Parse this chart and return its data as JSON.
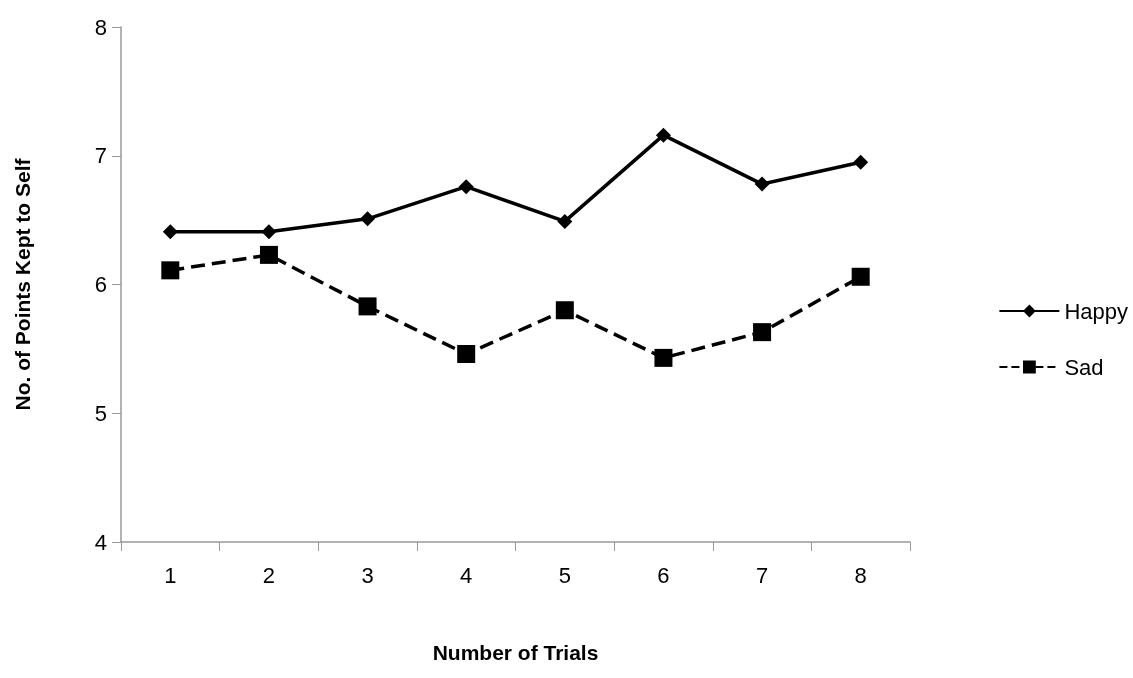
{
  "chart_data": {
    "type": "line",
    "xlabel": "Number of Trials",
    "ylabel": "No. of Points Kept to Self",
    "categories": [
      "1",
      "2",
      "3",
      "4",
      "5",
      "6",
      "7",
      "8"
    ],
    "series": [
      {
        "name": "Happy",
        "color": "#000000",
        "values": [
          6.41,
          6.41,
          6.51,
          6.76,
          6.49,
          7.16,
          6.78,
          6.95
        ],
        "marker": "diamond",
        "line_style": "solid"
      },
      {
        "name": "Sad",
        "color": "#000000",
        "values": [
          6.11,
          6.23,
          5.83,
          5.46,
          5.8,
          5.43,
          5.63,
          6.06
        ],
        "marker": "square",
        "line_style": "dashed"
      }
    ],
    "ylim": [
      4,
      8
    ],
    "yticks": [
      4,
      5,
      6,
      7,
      8
    ],
    "grid": false,
    "legend": "right"
  }
}
